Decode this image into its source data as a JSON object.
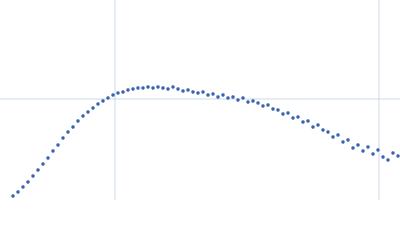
{
  "chart_data": {
    "type": "scatter",
    "color": "#3a63b0",
    "grid": true,
    "xlim": [
      0,
      400
    ],
    "ylim": [
      0,
      200
    ],
    "xticks": [
      115,
      379
    ],
    "yticks": [
      101
    ],
    "x": [
      13,
      18,
      23,
      28,
      33,
      38,
      43,
      48,
      53,
      58,
      63,
      68,
      73,
      78,
      83,
      88,
      93,
      98,
      103,
      108,
      113,
      118,
      123,
      128,
      133,
      138,
      143,
      148,
      153,
      158,
      163,
      168,
      173,
      178,
      183,
      188,
      193,
      198,
      203,
      208,
      213,
      218,
      223,
      228,
      233,
      238,
      243,
      248,
      253,
      258,
      263,
      268,
      273,
      278,
      283,
      288,
      293,
      298,
      303,
      308,
      313,
      318,
      323,
      328,
      333,
      338,
      343,
      348,
      353,
      358,
      363,
      368,
      373,
      378,
      383,
      388,
      393,
      398
    ],
    "values": [
      4,
      8,
      13,
      18,
      24,
      30,
      36,
      42,
      49,
      55,
      62,
      68,
      73,
      79,
      84,
      88,
      92,
      96,
      99,
      102,
      105,
      107,
      108,
      110,
      111,
      112,
      112,
      113,
      112,
      113,
      112,
      111,
      113,
      111,
      109,
      110,
      108,
      107,
      108,
      105,
      106,
      103,
      105,
      102,
      103,
      100,
      102,
      98,
      99,
      97,
      94,
      95,
      91,
      90,
      86,
      87,
      82,
      83,
      78,
      79,
      73,
      75,
      70,
      68,
      63,
      65,
      58,
      60,
      52,
      55,
      49,
      53,
      46,
      50,
      43,
      40,
      47,
      44
    ]
  }
}
